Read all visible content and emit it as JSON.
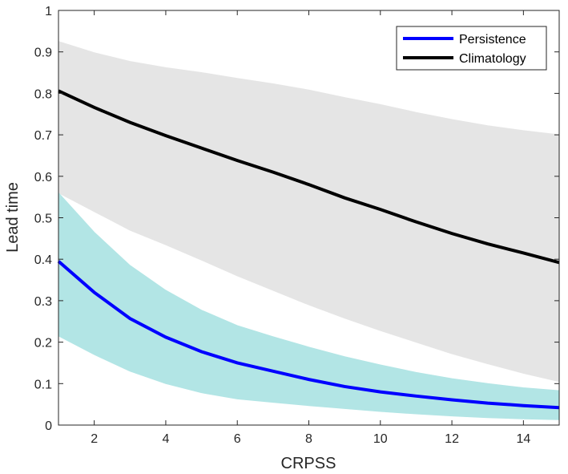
{
  "chart_data": {
    "type": "line",
    "title": "",
    "xlabel": "CRPSS",
    "ylabel": "Lead time",
    "xlim": [
      1,
      15
    ],
    "ylim": [
      0,
      1
    ],
    "xticks": [
      2,
      4,
      6,
      8,
      10,
      12,
      14
    ],
    "yticks": [
      0,
      0.1,
      0.2,
      0.3,
      0.4,
      0.5,
      0.6,
      0.7,
      0.8,
      0.9,
      1
    ],
    "ytick_labels": [
      "0",
      "0.1",
      "0.2",
      "0.3",
      "0.4",
      "0.5",
      "0.6",
      "0.7",
      "0.8",
      "0.9",
      "1"
    ],
    "grid": false,
    "legend_position": "top-right",
    "x": [
      1,
      2,
      3,
      4,
      5,
      6,
      7,
      8,
      9,
      10,
      11,
      12,
      13,
      14,
      15
    ],
    "series": [
      {
        "name": "Persistence",
        "color": "#0000ff",
        "band_color": "#b2e5e5",
        "values": [
          0.395,
          0.32,
          0.257,
          0.212,
          0.177,
          0.15,
          0.13,
          0.11,
          0.093,
          0.08,
          0.07,
          0.061,
          0.053,
          0.047,
          0.042
        ],
        "upper": [
          0.56,
          0.465,
          0.385,
          0.325,
          0.277,
          0.24,
          0.213,
          0.188,
          0.165,
          0.145,
          0.127,
          0.112,
          0.1,
          0.09,
          0.083
        ],
        "lower": [
          0.215,
          0.17,
          0.13,
          0.1,
          0.078,
          0.063,
          0.055,
          0.047,
          0.04,
          0.033,
          0.027,
          0.022,
          0.018,
          0.015,
          0.013
        ]
      },
      {
        "name": "Climatology",
        "color": "#000000",
        "band_color": "#e5e5e5",
        "values": [
          0.806,
          0.766,
          0.73,
          0.698,
          0.668,
          0.638,
          0.61,
          0.58,
          0.548,
          0.52,
          0.49,
          0.462,
          0.437,
          0.415,
          0.392
        ],
        "upper": [
          0.925,
          0.898,
          0.877,
          0.862,
          0.85,
          0.836,
          0.823,
          0.808,
          0.79,
          0.773,
          0.754,
          0.737,
          0.722,
          0.71,
          0.7
        ],
        "lower": [
          0.56,
          0.515,
          0.47,
          0.435,
          0.398,
          0.36,
          0.325,
          0.29,
          0.258,
          0.228,
          0.2,
          0.172,
          0.148,
          0.125,
          0.105
        ]
      }
    ]
  }
}
